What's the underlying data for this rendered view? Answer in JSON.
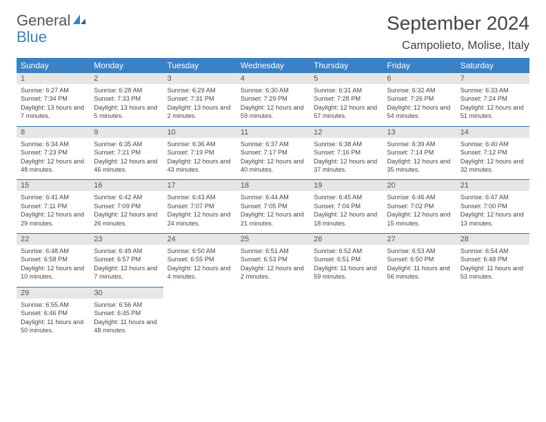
{
  "brand": {
    "part1": "General",
    "part2": "Blue"
  },
  "title": "September 2024",
  "location": "Campolieto, Molise, Italy",
  "colors": {
    "header_bg": "#3b82c4",
    "header_text": "#ffffff",
    "daynum_bg": "#e6e6e6",
    "row_border": "#3b6fa0",
    "body_text": "#444444",
    "background": "#ffffff"
  },
  "typography": {
    "title_fontsize": 28,
    "location_fontsize": 17,
    "dow_fontsize": 12,
    "daynum_fontsize": 11,
    "cell_fontsize": 9.2
  },
  "dow": [
    "Sunday",
    "Monday",
    "Tuesday",
    "Wednesday",
    "Thursday",
    "Friday",
    "Saturday"
  ],
  "weeks": [
    [
      {
        "n": "1",
        "sunrise": "Sunrise: 6:27 AM",
        "sunset": "Sunset: 7:34 PM",
        "daylight": "Daylight: 13 hours and 7 minutes."
      },
      {
        "n": "2",
        "sunrise": "Sunrise: 6:28 AM",
        "sunset": "Sunset: 7:33 PM",
        "daylight": "Daylight: 13 hours and 5 minutes."
      },
      {
        "n": "3",
        "sunrise": "Sunrise: 6:29 AM",
        "sunset": "Sunset: 7:31 PM",
        "daylight": "Daylight: 13 hours and 2 minutes."
      },
      {
        "n": "4",
        "sunrise": "Sunrise: 6:30 AM",
        "sunset": "Sunset: 7:29 PM",
        "daylight": "Daylight: 12 hours and 59 minutes."
      },
      {
        "n": "5",
        "sunrise": "Sunrise: 6:31 AM",
        "sunset": "Sunset: 7:28 PM",
        "daylight": "Daylight: 12 hours and 57 minutes."
      },
      {
        "n": "6",
        "sunrise": "Sunrise: 6:32 AM",
        "sunset": "Sunset: 7:26 PM",
        "daylight": "Daylight: 12 hours and 54 minutes."
      },
      {
        "n": "7",
        "sunrise": "Sunrise: 6:33 AM",
        "sunset": "Sunset: 7:24 PM",
        "daylight": "Daylight: 12 hours and 51 minutes."
      }
    ],
    [
      {
        "n": "8",
        "sunrise": "Sunrise: 6:34 AM",
        "sunset": "Sunset: 7:23 PM",
        "daylight": "Daylight: 12 hours and 48 minutes."
      },
      {
        "n": "9",
        "sunrise": "Sunrise: 6:35 AM",
        "sunset": "Sunset: 7:21 PM",
        "daylight": "Daylight: 12 hours and 46 minutes."
      },
      {
        "n": "10",
        "sunrise": "Sunrise: 6:36 AM",
        "sunset": "Sunset: 7:19 PM",
        "daylight": "Daylight: 12 hours and 43 minutes."
      },
      {
        "n": "11",
        "sunrise": "Sunrise: 6:37 AM",
        "sunset": "Sunset: 7:17 PM",
        "daylight": "Daylight: 12 hours and 40 minutes."
      },
      {
        "n": "12",
        "sunrise": "Sunrise: 6:38 AM",
        "sunset": "Sunset: 7:16 PM",
        "daylight": "Daylight: 12 hours and 37 minutes."
      },
      {
        "n": "13",
        "sunrise": "Sunrise: 6:39 AM",
        "sunset": "Sunset: 7:14 PM",
        "daylight": "Daylight: 12 hours and 35 minutes."
      },
      {
        "n": "14",
        "sunrise": "Sunrise: 6:40 AM",
        "sunset": "Sunset: 7:12 PM",
        "daylight": "Daylight: 12 hours and 32 minutes."
      }
    ],
    [
      {
        "n": "15",
        "sunrise": "Sunrise: 6:41 AM",
        "sunset": "Sunset: 7:11 PM",
        "daylight": "Daylight: 12 hours and 29 minutes."
      },
      {
        "n": "16",
        "sunrise": "Sunrise: 6:42 AM",
        "sunset": "Sunset: 7:09 PM",
        "daylight": "Daylight: 12 hours and 26 minutes."
      },
      {
        "n": "17",
        "sunrise": "Sunrise: 6:43 AM",
        "sunset": "Sunset: 7:07 PM",
        "daylight": "Daylight: 12 hours and 24 minutes."
      },
      {
        "n": "18",
        "sunrise": "Sunrise: 6:44 AM",
        "sunset": "Sunset: 7:05 PM",
        "daylight": "Daylight: 12 hours and 21 minutes."
      },
      {
        "n": "19",
        "sunrise": "Sunrise: 6:45 AM",
        "sunset": "Sunset: 7:04 PM",
        "daylight": "Daylight: 12 hours and 18 minutes."
      },
      {
        "n": "20",
        "sunrise": "Sunrise: 6:46 AM",
        "sunset": "Sunset: 7:02 PM",
        "daylight": "Daylight: 12 hours and 15 minutes."
      },
      {
        "n": "21",
        "sunrise": "Sunrise: 6:47 AM",
        "sunset": "Sunset: 7:00 PM",
        "daylight": "Daylight: 12 hours and 13 minutes."
      }
    ],
    [
      {
        "n": "22",
        "sunrise": "Sunrise: 6:48 AM",
        "sunset": "Sunset: 6:58 PM",
        "daylight": "Daylight: 12 hours and 10 minutes."
      },
      {
        "n": "23",
        "sunrise": "Sunrise: 6:49 AM",
        "sunset": "Sunset: 6:57 PM",
        "daylight": "Daylight: 12 hours and 7 minutes."
      },
      {
        "n": "24",
        "sunrise": "Sunrise: 6:50 AM",
        "sunset": "Sunset: 6:55 PM",
        "daylight": "Daylight: 12 hours and 4 minutes."
      },
      {
        "n": "25",
        "sunrise": "Sunrise: 6:51 AM",
        "sunset": "Sunset: 6:53 PM",
        "daylight": "Daylight: 12 hours and 2 minutes."
      },
      {
        "n": "26",
        "sunrise": "Sunrise: 6:52 AM",
        "sunset": "Sunset: 6:51 PM",
        "daylight": "Daylight: 11 hours and 59 minutes."
      },
      {
        "n": "27",
        "sunrise": "Sunrise: 6:53 AM",
        "sunset": "Sunset: 6:50 PM",
        "daylight": "Daylight: 11 hours and 56 minutes."
      },
      {
        "n": "28",
        "sunrise": "Sunrise: 6:54 AM",
        "sunset": "Sunset: 6:48 PM",
        "daylight": "Daylight: 11 hours and 53 minutes."
      }
    ],
    [
      {
        "n": "29",
        "sunrise": "Sunrise: 6:55 AM",
        "sunset": "Sunset: 6:46 PM",
        "daylight": "Daylight: 11 hours and 50 minutes."
      },
      {
        "n": "30",
        "sunrise": "Sunrise: 6:56 AM",
        "sunset": "Sunset: 6:45 PM",
        "daylight": "Daylight: 11 hours and 48 minutes."
      },
      null,
      null,
      null,
      null,
      null
    ]
  ]
}
